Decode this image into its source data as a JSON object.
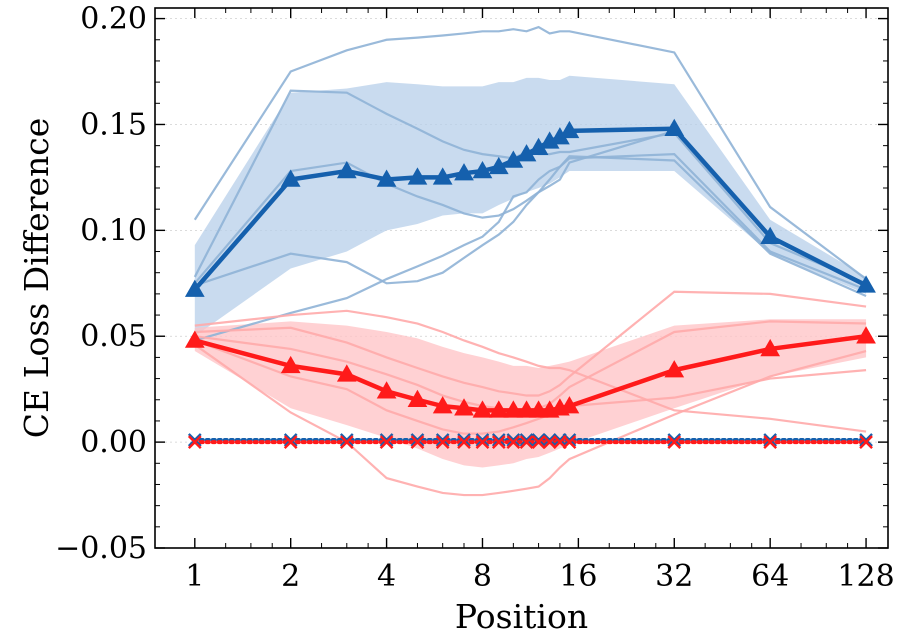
{
  "chart_data": {
    "type": "line",
    "title": "",
    "xlabel": "Position",
    "ylabel": "CE Loss Difference",
    "xscale": "log2",
    "xlim": [
      0.75,
      150
    ],
    "ylim": [
      -0.05,
      0.205
    ],
    "x_ticks": [
      1,
      2,
      4,
      8,
      16,
      32,
      64,
      128
    ],
    "x_tick_labels": [
      "1",
      "2",
      "4",
      "8",
      "16",
      "32",
      "64",
      "128"
    ],
    "y_ticks": [
      -0.05,
      0.0,
      0.05,
      0.1,
      0.15,
      0.2
    ],
    "y_tick_labels": [
      "−0.05",
      "0.00",
      "0.05",
      "0.10",
      "0.15",
      "0.20"
    ],
    "grid": "horizontal-dotted",
    "legend": "none",
    "x": [
      1,
      2,
      3,
      4,
      5,
      6,
      7,
      8,
      9,
      10,
      11,
      12,
      13,
      14,
      15,
      32,
      64,
      128
    ],
    "series": [
      {
        "color": "#1560ad",
        "marker": "triangle",
        "style": "solid",
        "values": [
          0.072,
          0.124,
          0.128,
          0.124,
          0.125,
          0.125,
          0.127,
          0.128,
          0.13,
          0.133,
          0.136,
          0.139,
          0.142,
          0.144,
          0.147,
          0.148,
          0.097,
          0.074
        ],
        "band_upper": [
          0.093,
          0.165,
          0.167,
          0.17,
          0.169,
          0.168,
          0.168,
          0.168,
          0.17,
          0.17,
          0.172,
          0.172,
          0.171,
          0.171,
          0.173,
          0.169,
          0.105,
          0.078
        ],
        "band_lower": [
          0.05,
          0.082,
          0.09,
          0.1,
          0.103,
          0.107,
          0.108,
          0.108,
          0.112,
          0.115,
          0.118,
          0.12,
          0.122,
          0.125,
          0.128,
          0.128,
          0.089,
          0.07
        ],
        "runs": [
          [
            0.105,
            0.175,
            0.185,
            0.19,
            0.191,
            0.192,
            0.193,
            0.194,
            0.194,
            0.195,
            0.194,
            0.196,
            0.193,
            0.194,
            0.194,
            0.184,
            0.111,
            0.077
          ],
          [
            0.078,
            0.166,
            0.165,
            0.155,
            0.148,
            0.142,
            0.138,
            0.136,
            0.135,
            0.134,
            0.137,
            0.136,
            0.136,
            0.137,
            0.137,
            0.146,
            0.094,
            0.075
          ],
          [
            0.075,
            0.128,
            0.132,
            0.122,
            0.116,
            0.112,
            0.108,
            0.106,
            0.107,
            0.11,
            0.114,
            0.118,
            0.121,
            0.124,
            0.132,
            0.147,
            0.097,
            0.074
          ],
          [
            0.074,
            0.089,
            0.085,
            0.075,
            0.076,
            0.08,
            0.087,
            0.093,
            0.098,
            0.104,
            0.112,
            0.118,
            0.124,
            0.13,
            0.134,
            0.136,
            0.09,
            0.072
          ],
          [
            0.048,
            0.061,
            0.068,
            0.077,
            0.083,
            0.088,
            0.093,
            0.097,
            0.104,
            0.116,
            0.118,
            0.124,
            0.128,
            0.13,
            0.135,
            0.133,
            0.089,
            0.069
          ]
        ]
      },
      {
        "color": "#ff1a1a",
        "marker": "triangle",
        "style": "solid",
        "values": [
          0.048,
          0.036,
          0.032,
          0.024,
          0.02,
          0.017,
          0.016,
          0.015,
          0.015,
          0.015,
          0.015,
          0.015,
          0.015,
          0.016,
          0.017,
          0.034,
          0.044,
          0.05
        ],
        "band_upper": [
          0.054,
          0.057,
          0.055,
          0.052,
          0.049,
          0.045,
          0.042,
          0.04,
          0.038,
          0.036,
          0.036,
          0.035,
          0.036,
          0.037,
          0.038,
          0.055,
          0.058,
          0.058
        ],
        "band_lower": [
          0.043,
          0.016,
          0.008,
          0.002,
          -0.003,
          -0.008,
          -0.011,
          -0.012,
          -0.011,
          -0.01,
          -0.008,
          -0.007,
          -0.005,
          -0.003,
          -0.001,
          0.016,
          0.031,
          0.04
        ],
        "runs": [
          [
            0.055,
            0.06,
            0.062,
            0.059,
            0.056,
            0.052,
            0.048,
            0.045,
            0.042,
            0.04,
            0.038,
            0.036,
            0.035,
            0.035,
            0.034,
            0.015,
            0.011,
            0.005
          ],
          [
            0.052,
            0.054,
            0.047,
            0.04,
            0.035,
            0.031,
            0.028,
            0.026,
            0.024,
            0.023,
            0.022,
            0.022,
            0.024,
            0.027,
            0.031,
            0.071,
            0.07,
            0.064
          ],
          [
            0.05,
            0.044,
            0.038,
            0.032,
            0.027,
            0.022,
            0.019,
            0.017,
            0.016,
            0.015,
            0.015,
            0.016,
            0.018,
            0.022,
            0.026,
            0.052,
            0.057,
            0.056
          ],
          [
            0.048,
            0.031,
            0.025,
            0.015,
            0.01,
            0.006,
            0.004,
            0.004,
            0.005,
            0.007,
            0.009,
            0.011,
            0.013,
            0.015,
            0.017,
            0.021,
            0.03,
            0.034
          ],
          [
            0.046,
            0.014,
            0.0,
            -0.017,
            -0.021,
            -0.024,
            -0.025,
            -0.025,
            -0.024,
            -0.023,
            -0.022,
            -0.021,
            -0.017,
            -0.012,
            -0.008,
            0.013,
            0.031,
            0.043
          ]
        ]
      },
      {
        "color": "#1560ad",
        "marker": "cross",
        "style": "dotted",
        "values": [
          0.001,
          0.001,
          0.001,
          0.001,
          0.001,
          0.001,
          0.001,
          0.001,
          0.001,
          0.001,
          0.001,
          0.001,
          0.001,
          0.001,
          0.001,
          0.001,
          0.001,
          0.001
        ]
      },
      {
        "color": "#ff1a1a",
        "marker": "cross",
        "style": "dotted",
        "values": [
          0.0,
          0.0,
          0.0,
          0.0,
          0.0,
          0.0,
          0.0,
          0.0,
          0.0,
          0.0,
          0.0,
          0.0,
          0.0,
          0.0,
          0.0,
          0.0,
          0.0,
          0.0
        ]
      }
    ]
  }
}
